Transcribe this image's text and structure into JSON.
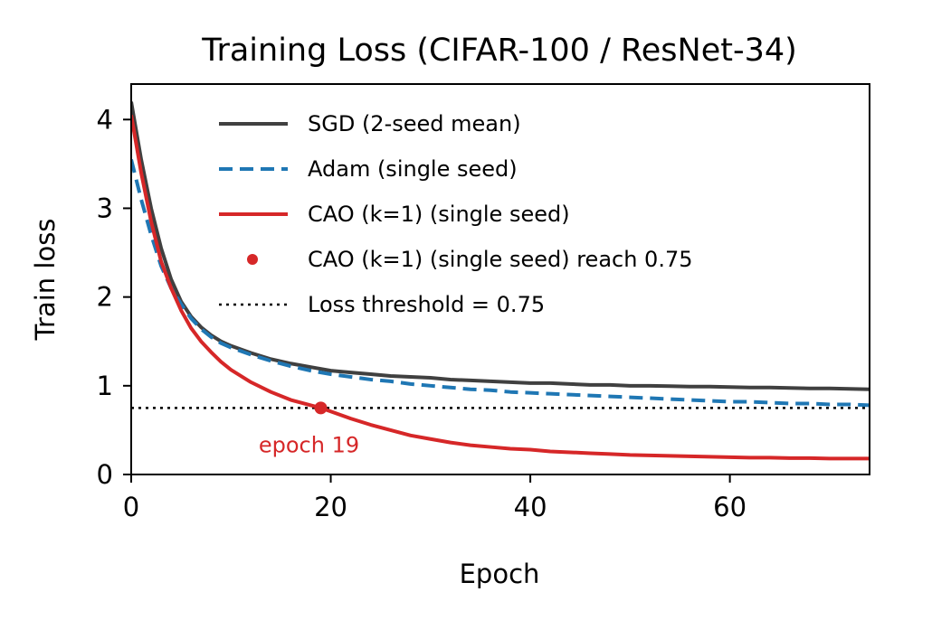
{
  "chart_data": {
    "type": "line",
    "title": "Training Loss (CIFAR-100 / ResNet-34)",
    "xlabel": "Epoch",
    "ylabel": "Train loss",
    "xlim": [
      0,
      74
    ],
    "ylim": [
      0,
      4.4
    ],
    "xticks": [
      0,
      20,
      40,
      60
    ],
    "yticks": [
      0,
      1,
      2,
      3,
      4
    ],
    "grid": false,
    "legend_position": "top-right",
    "threshold": {
      "value": 0.75,
      "label": "Loss threshold = 0.75",
      "color": "#000000"
    },
    "marker": {
      "x": 19,
      "y": 0.75,
      "label": "CAO (k=1) (single seed) reach 0.75",
      "annotation": "epoch 19",
      "color": "#d62728"
    },
    "series": [
      {
        "name": "SGD (2-seed mean)",
        "color": "#404040",
        "dash": "solid",
        "x": [
          0,
          1,
          2,
          3,
          4,
          5,
          6,
          7,
          8,
          9,
          10,
          12,
          14,
          16,
          18,
          20,
          22,
          24,
          26,
          28,
          30,
          32,
          34,
          36,
          38,
          40,
          42,
          44,
          46,
          48,
          50,
          52,
          54,
          56,
          58,
          60,
          62,
          64,
          66,
          68,
          70,
          72,
          74
        ],
        "y": [
          4.2,
          3.55,
          3.0,
          2.55,
          2.2,
          1.95,
          1.78,
          1.66,
          1.57,
          1.5,
          1.45,
          1.37,
          1.3,
          1.25,
          1.21,
          1.17,
          1.15,
          1.13,
          1.11,
          1.1,
          1.09,
          1.07,
          1.06,
          1.05,
          1.04,
          1.03,
          1.03,
          1.02,
          1.01,
          1.01,
          1.0,
          1.0,
          0.995,
          0.99,
          0.99,
          0.985,
          0.98,
          0.98,
          0.975,
          0.97,
          0.97,
          0.965,
          0.96
        ]
      },
      {
        "name": "Adam (single seed)",
        "color": "#1f77b4",
        "dash": "dashed",
        "x": [
          0,
          1,
          2,
          3,
          4,
          5,
          6,
          7,
          8,
          9,
          10,
          12,
          14,
          16,
          18,
          20,
          22,
          24,
          26,
          28,
          30,
          32,
          34,
          36,
          38,
          40,
          42,
          44,
          46,
          48,
          50,
          52,
          54,
          56,
          58,
          60,
          62,
          64,
          66,
          68,
          70,
          72,
          74
        ],
        "y": [
          3.55,
          3.1,
          2.7,
          2.35,
          2.1,
          1.92,
          1.76,
          1.64,
          1.55,
          1.48,
          1.43,
          1.35,
          1.28,
          1.22,
          1.17,
          1.13,
          1.1,
          1.07,
          1.05,
          1.02,
          1.0,
          0.98,
          0.96,
          0.95,
          0.93,
          0.92,
          0.91,
          0.9,
          0.89,
          0.88,
          0.87,
          0.86,
          0.85,
          0.84,
          0.83,
          0.82,
          0.82,
          0.81,
          0.8,
          0.8,
          0.79,
          0.79,
          0.78
        ]
      },
      {
        "name": "CAO (k=1) (single seed)",
        "color": "#d62728",
        "dash": "solid",
        "x": [
          0,
          1,
          2,
          3,
          4,
          5,
          6,
          7,
          8,
          9,
          10,
          12,
          14,
          16,
          18,
          19,
          20,
          22,
          24,
          26,
          28,
          30,
          32,
          34,
          36,
          38,
          40,
          42,
          44,
          46,
          48,
          50,
          52,
          54,
          56,
          58,
          60,
          62,
          64,
          66,
          68,
          70,
          72,
          74
        ],
        "y": [
          4.05,
          3.4,
          2.85,
          2.4,
          2.1,
          1.85,
          1.65,
          1.5,
          1.38,
          1.27,
          1.18,
          1.04,
          0.93,
          0.84,
          0.78,
          0.75,
          0.71,
          0.63,
          0.56,
          0.5,
          0.44,
          0.4,
          0.36,
          0.33,
          0.31,
          0.29,
          0.28,
          0.26,
          0.25,
          0.24,
          0.23,
          0.22,
          0.215,
          0.21,
          0.205,
          0.2,
          0.195,
          0.19,
          0.19,
          0.185,
          0.185,
          0.18,
          0.18,
          0.18
        ]
      }
    ]
  }
}
